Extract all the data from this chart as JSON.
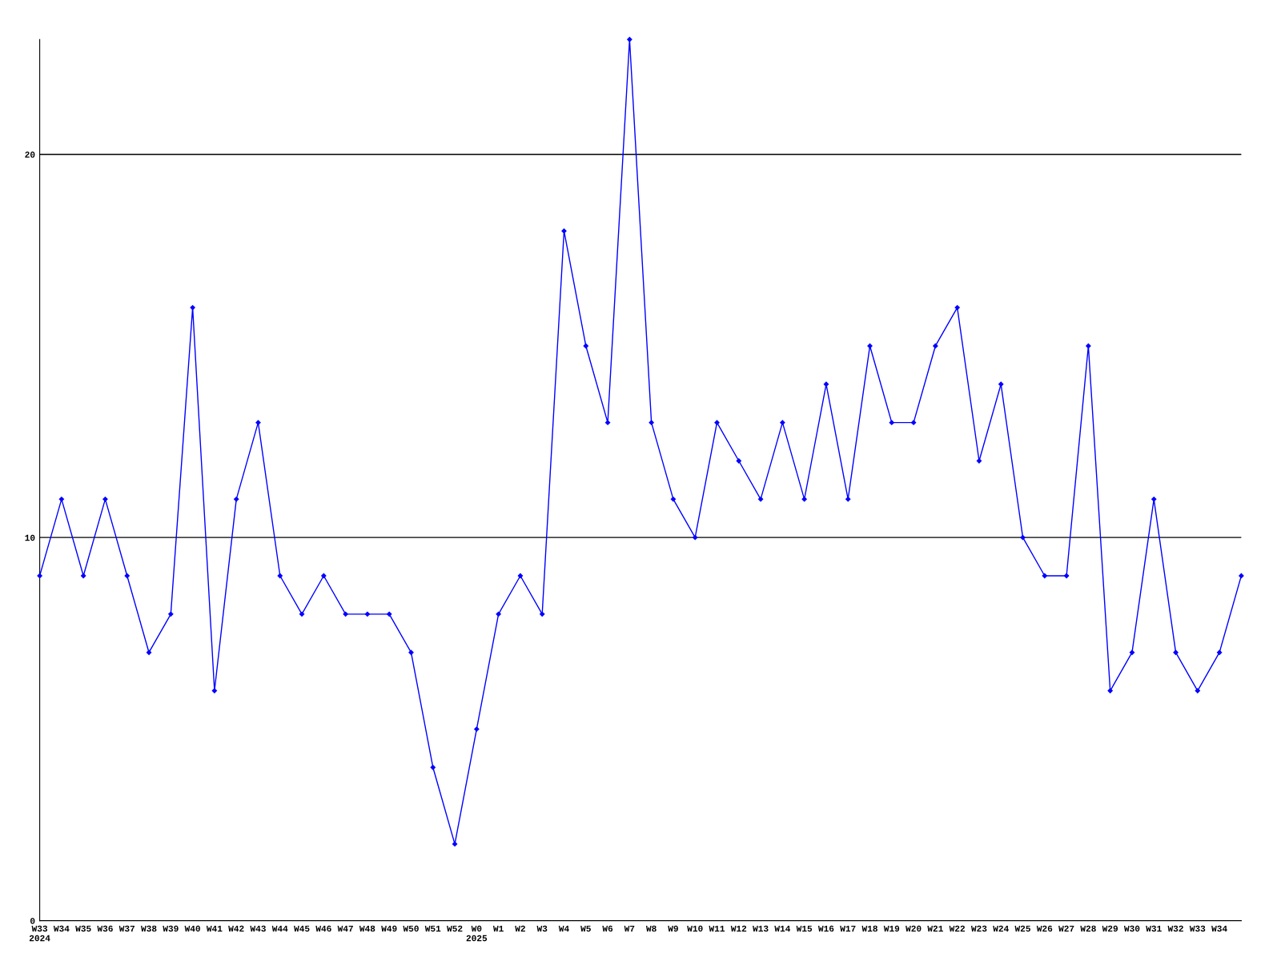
{
  "chart_data": {
    "type": "line",
    "categories": [
      "W33\n2024",
      "W34",
      "W35",
      "W36",
      "W37",
      "W38",
      "W39",
      "W40",
      "W41",
      "W42",
      "W43",
      "W44",
      "W45",
      "W46",
      "W47",
      "W48",
      "W49",
      "W50",
      "W51",
      "W52",
      "W0\n2025",
      "W1",
      "W2",
      "W3",
      "W4",
      "W5",
      "W6",
      "W7",
      "W8",
      "W9",
      "W10",
      "W11",
      "W12",
      "W13",
      "W14",
      "W15",
      "W16",
      "W17",
      "W18",
      "W19",
      "W20",
      "W21",
      "W22",
      "W23",
      "W24",
      "W25",
      "W26",
      "W27",
      "W28",
      "W29",
      "W30",
      "W31",
      "W32",
      "W33",
      "W34",
      null
    ],
    "series": [
      {
        "color": "#0000ff",
        "values": [
          9,
          11,
          9,
          11,
          9,
          7,
          8,
          16,
          6,
          11,
          13,
          9,
          8,
          9,
          8,
          8,
          8,
          7,
          4,
          2,
          5,
          8,
          9,
          8,
          18,
          15,
          13,
          23,
          13,
          11,
          10,
          13,
          12,
          11,
          13,
          11,
          14,
          11,
          15,
          13,
          13,
          15,
          16,
          12,
          14,
          10,
          9,
          9,
          15,
          6,
          7,
          11,
          7,
          6,
          7,
          9
        ]
      }
    ],
    "ylim": [
      0,
      23
    ],
    "yticks": [
      0,
      10,
      20
    ],
    "grid": "y",
    "marker": "diamond",
    "line_style": "solid"
  }
}
